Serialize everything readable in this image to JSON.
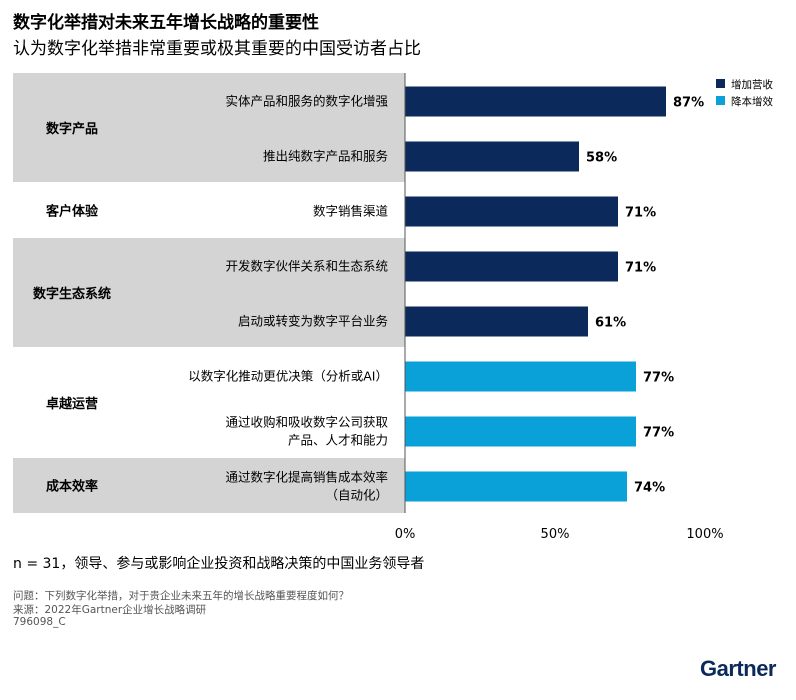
{
  "title": "数字化举措对未来五年增长战略的重要性",
  "subtitle": "认为数字化举措非常重要或极其重要的中国受访者占比",
  "footnote": "n = 31，领导、参与或影响企业投资和战略决策的中国业务领导者",
  "question": "问题：下列数字化举措，对于贵企业未来五年的增长战略重要程度如何？",
  "source": "来源：2022年Gartner企业增长战略调研",
  "doc_id": "796098_C",
  "brand": "Gartner",
  "chart_data": {
    "type": "bar",
    "orientation": "horizontal",
    "xlim": [
      0,
      100
    ],
    "x_ticks": [
      "0%",
      "50%",
      "100%"
    ],
    "value_suffix": "%",
    "legend": {
      "position": "top-right",
      "entries": [
        {
          "name": "增加营收",
          "color": "#0b2a5b"
        },
        {
          "name": "降本增效",
          "color": "#0aa0d8"
        }
      ]
    },
    "groups": [
      {
        "name": "数字产品",
        "shaded": true,
        "items": [
          {
            "label": [
              "实体产品和服务的数字化增强"
            ],
            "value": 87,
            "series": "增加营收"
          },
          {
            "label": [
              "推出纯数字产品和服务"
            ],
            "value": 58,
            "series": "增加营收"
          }
        ]
      },
      {
        "name": "客户体验",
        "shaded": false,
        "items": [
          {
            "label": [
              "数字销售渠道"
            ],
            "value": 71,
            "series": "增加营收"
          }
        ]
      },
      {
        "name": "数字生态系统",
        "shaded": true,
        "items": [
          {
            "label": [
              "开发数字伙伴关系和生态系统"
            ],
            "value": 71,
            "series": "增加营收"
          },
          {
            "label": [
              "启动或转变为数字平台业务"
            ],
            "value": 61,
            "series": "增加营收"
          }
        ]
      },
      {
        "name": "卓越运营",
        "shaded": false,
        "items": [
          {
            "label": [
              "以数字化推动更优决策（分析或AI）"
            ],
            "value": 77,
            "series": "降本增效"
          },
          {
            "label": [
              "通过收购和吸收数字公司获取",
              "产品、人才和能力"
            ],
            "value": 77,
            "series": "降本增效"
          }
        ]
      },
      {
        "name": "成本效率",
        "shaded": true,
        "items": [
          {
            "label": [
              "通过数字化提高销售成本效率",
              "（自动化）"
            ],
            "value": 74,
            "series": "降本增效"
          }
        ]
      }
    ]
  }
}
